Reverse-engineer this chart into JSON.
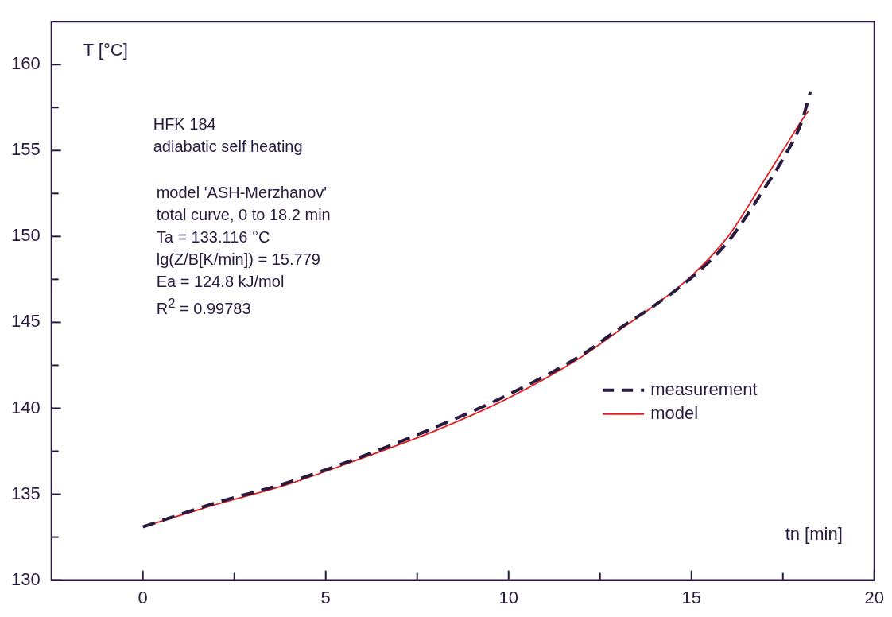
{
  "chart_data": {
    "type": "line",
    "xlabel": "tn [min]",
    "ylabel": "T [°C]",
    "xlim": [
      -2.5,
      20
    ],
    "xticks": [
      0,
      {
        "value": 2.5,
        "label": null
      },
      5,
      {
        "value": 7.5,
        "label": null
      },
      10,
      {
        "value": 12.5,
        "label": null
      },
      15,
      {
        "value": 17.5,
        "label": null
      },
      20
    ],
    "ylim": [
      130,
      162.5
    ],
    "yticks": [
      130,
      {
        "value": 132.5,
        "label": null
      },
      135,
      {
        "value": 137.5,
        "label": null
      },
      140,
      {
        "value": 142.5,
        "label": null
      },
      145,
      {
        "value": 147.5,
        "label": null
      },
      150,
      {
        "value": 152.5,
        "label": null
      },
      155,
      {
        "value": 157.5,
        "label": null
      },
      160
    ],
    "legend": "right",
    "marker": "none",
    "series": [
      {
        "name": "measurement",
        "color": "#2a1a3f",
        "line_style": "dashed",
        "x": [
          0,
          2,
          4,
          6,
          8,
          10,
          12,
          13,
          14,
          15,
          16,
          17,
          17.5,
          18,
          18.25
        ],
        "values": [
          133.1,
          134.5,
          135.7,
          137.2,
          138.9,
          140.8,
          143.1,
          144.6,
          146.0,
          147.6,
          149.7,
          152.8,
          154.5,
          156.6,
          158.4
        ]
      },
      {
        "name": "model",
        "color": "#e02020",
        "line_style": "solid",
        "x": [
          0,
          2,
          4,
          6,
          8,
          10,
          12,
          13,
          14,
          15,
          16,
          17,
          17.5,
          18,
          18.2
        ],
        "values": [
          133.1,
          134.4,
          135.6,
          137.1,
          138.7,
          140.6,
          143.0,
          144.5,
          146.0,
          147.7,
          150.0,
          153.3,
          155.0,
          156.7,
          157.3
        ]
      }
    ],
    "annotations": [
      "HFK 184",
      "adiabatic self heating",
      "model  'ASH-Merzhanov'",
      "total curve, 0 to 18.2 min",
      "Ta = 133.116 °C",
      "lg(Z/B[K/min]) = 15.779",
      "Ea = 124.8 kJ/mol",
      "R$^{2}$ = 0.99783"
    ]
  }
}
